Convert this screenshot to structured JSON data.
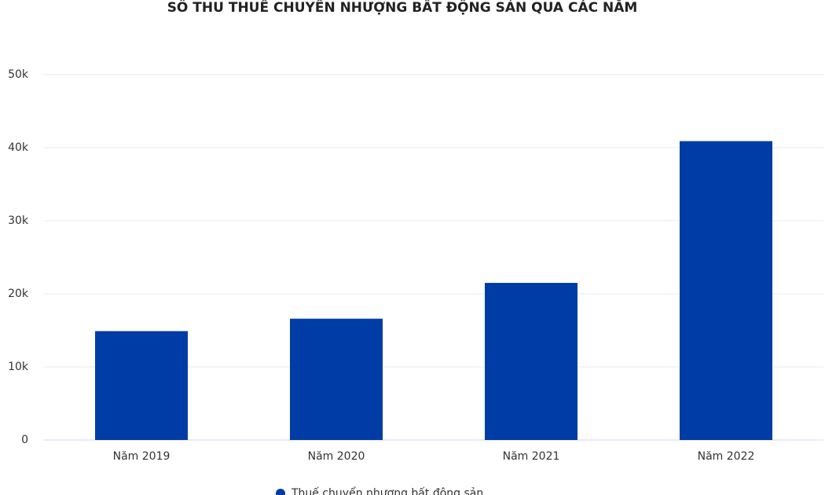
{
  "chart_data": {
    "type": "bar",
    "title": "SỐ THU THUẾ CHUYỂN NHƯỢNG BẤT ĐỘNG SẢN QUA CÁC NĂM",
    "categories": [
      "Năm 2019",
      "Năm 2020",
      "Năm 2021",
      "Năm 2022"
    ],
    "series": [
      {
        "name": "Thuế chuyển nhượng bất động sản",
        "color": "#003ca6",
        "values": [
          14900,
          16600,
          21500,
          40900
        ]
      }
    ],
    "ylim": [
      0,
      50000
    ],
    "yticks": [
      0,
      {
        "value": 10000,
        "label": "10k"
      },
      {
        "value": 20000,
        "label": "20k"
      },
      {
        "value": 30000,
        "label": "30k"
      },
      {
        "value": 40000,
        "label": "40k"
      },
      {
        "value": 50000,
        "label": "50k"
      }
    ],
    "grid": true,
    "legend": "bottom"
  }
}
